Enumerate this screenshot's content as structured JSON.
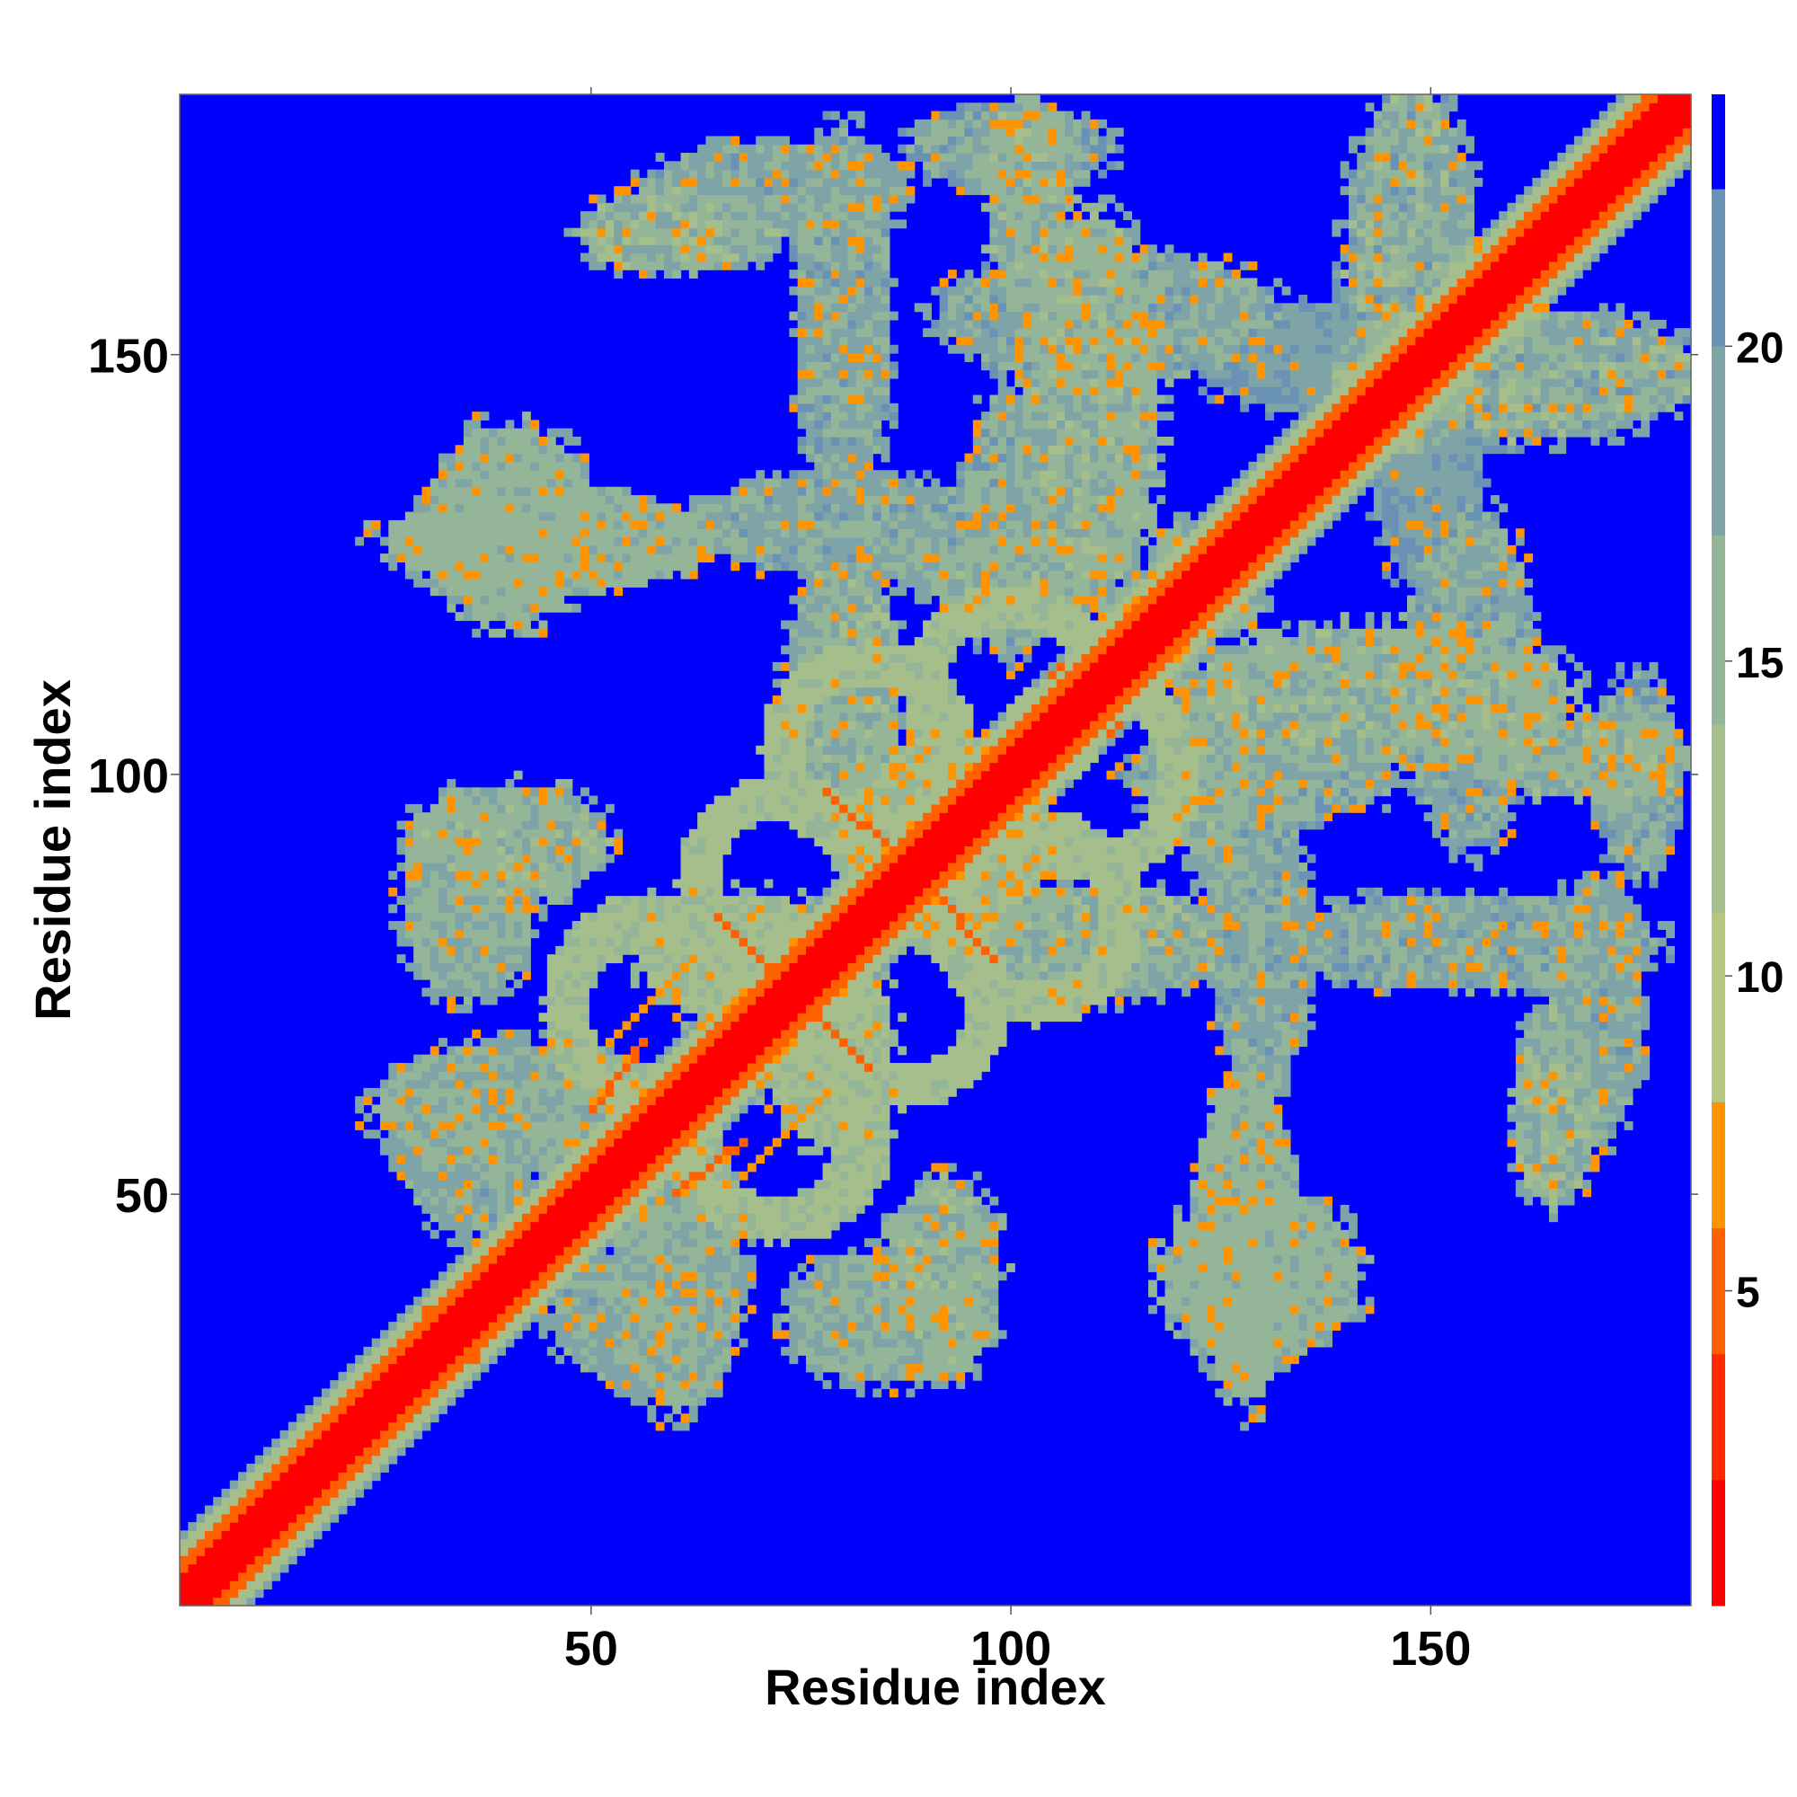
{
  "chart_data": {
    "type": "heatmap",
    "xlabel": "Residue index",
    "ylabel": "Residue index",
    "xlim": [
      1,
      181
    ],
    "ylim": [
      1,
      181
    ],
    "xticks": [
      50,
      100,
      150
    ],
    "yticks": [
      50,
      100,
      150
    ],
    "colorbar": {
      "range": [
        0,
        24
      ],
      "ticks": [
        5,
        10,
        15,
        20
      ],
      "bins": [
        {
          "from": 0,
          "to": 2,
          "color": "#ff0000"
        },
        {
          "from": 2,
          "to": 4,
          "color": "#ff2a00"
        },
        {
          "from": 4,
          "to": 6,
          "color": "#ff6000"
        },
        {
          "from": 6,
          "to": 8,
          "color": "#ff9400"
        },
        {
          "from": 8,
          "to": 11,
          "color": "#b4c880"
        },
        {
          "from": 11,
          "to": 14,
          "color": "#a6be8c"
        },
        {
          "from": 14,
          "to": 17,
          "color": "#94b598"
        },
        {
          "from": 17,
          "to": 20,
          "color": "#7ea4a8"
        },
        {
          "from": 20,
          "to": 22.5,
          "color": "#6a92b5"
        },
        {
          "from": 22.5,
          "to": 24,
          "color": "#0000ff"
        }
      ]
    },
    "background_value": 24,
    "background_color": "#0000ff",
    "matrix_size": 181,
    "diagonal_band": [
      {
        "max_offset": 3,
        "value": 1
      },
      {
        "max_offset": 5,
        "value": 5
      },
      {
        "max_offset": 7,
        "value": 13
      },
      {
        "max_offset": 8,
        "value": 19
      }
    ],
    "contact_blobs": [
      [
        100,
        175,
        12,
        5,
        18,
        8
      ],
      [
        72,
        170,
        16,
        6,
        18,
        5
      ],
      [
        60,
        165,
        12,
        5,
        16,
        7
      ],
      [
        112,
        155,
        20,
        8,
        18,
        6
      ],
      [
        140,
        150,
        18,
        7,
        20,
        5
      ],
      [
        160,
        148,
        22,
        8,
        17,
        8
      ],
      [
        45,
        128,
        20,
        6,
        16,
        4
      ],
      [
        80,
        130,
        18,
        6,
        18,
        6
      ],
      [
        100,
        125,
        14,
        5,
        17,
        7
      ],
      [
        120,
        120,
        10,
        4,
        17,
        6
      ],
      [
        145,
        110,
        22,
        8,
        16,
        5
      ],
      [
        170,
        102,
        12,
        5,
        16,
        5
      ],
      [
        130,
        100,
        16,
        6,
        18,
        6
      ],
      [
        40,
        92,
        12,
        7,
        16,
        5
      ],
      [
        155,
        80,
        22,
        6,
        18,
        6
      ],
      [
        110,
        80,
        16,
        7,
        17,
        7
      ],
      [
        40,
        60,
        16,
        8,
        17,
        5
      ],
      [
        130,
        40,
        12,
        10,
        16,
        4
      ],
      [
        85,
        35,
        12,
        8,
        17,
        5
      ],
      [
        55,
        35,
        10,
        8,
        18,
        5
      ],
      [
        92,
        92,
        12,
        12,
        15,
        5
      ],
      [
        68,
        78,
        12,
        8,
        14,
        4
      ]
    ],
    "rings": [
      [
        57,
        71,
        8,
        13,
        3
      ],
      [
        73,
        57,
        8,
        13,
        3
      ],
      [
        73,
        87,
        8,
        13,
        3
      ],
      [
        87,
        73,
        8,
        13,
        3
      ],
      [
        83,
        103,
        8,
        13,
        3
      ],
      [
        103,
        83,
        8,
        13,
        3
      ],
      [
        100,
        110,
        8,
        13,
        3
      ],
      [
        110,
        100,
        8,
        13,
        3
      ]
    ],
    "hot_lines": [
      [
        [
          52,
          68
        ],
        [
          62,
          78
        ],
        6
      ],
      [
        [
          68,
          52
        ],
        [
          78,
          62
        ],
        6
      ],
      [
        [
          60,
          50
        ],
        [
          68,
          56
        ],
        5
      ],
      [
        [
          50,
          60
        ],
        [
          56,
          68
        ],
        5
      ],
      [
        [
          65,
          83
        ],
        [
          75,
          73
        ],
        5
      ],
      [
        [
          83,
          65
        ],
        [
          73,
          75
        ],
        5
      ],
      [
        [
          80,
          96
        ],
        [
          90,
          88
        ],
        5
      ],
      [
        [
          96,
          80
        ],
        [
          88,
          90
        ],
        5
      ],
      [
        [
          90,
          87
        ],
        [
          98,
          78
        ],
        5
      ],
      [
        [
          87,
          90
        ],
        [
          78,
          98
        ],
        5
      ],
      [
        [
          105,
          112
        ],
        [
          113,
          106
        ],
        5
      ],
      [
        [
          112,
          105
        ],
        [
          106,
          113
        ],
        5
      ],
      [
        [
          30,
          36
        ],
        [
          42,
          40
        ],
        5
      ],
      [
        [
          36,
          30
        ],
        [
          40,
          42
        ],
        5
      ]
    ]
  }
}
